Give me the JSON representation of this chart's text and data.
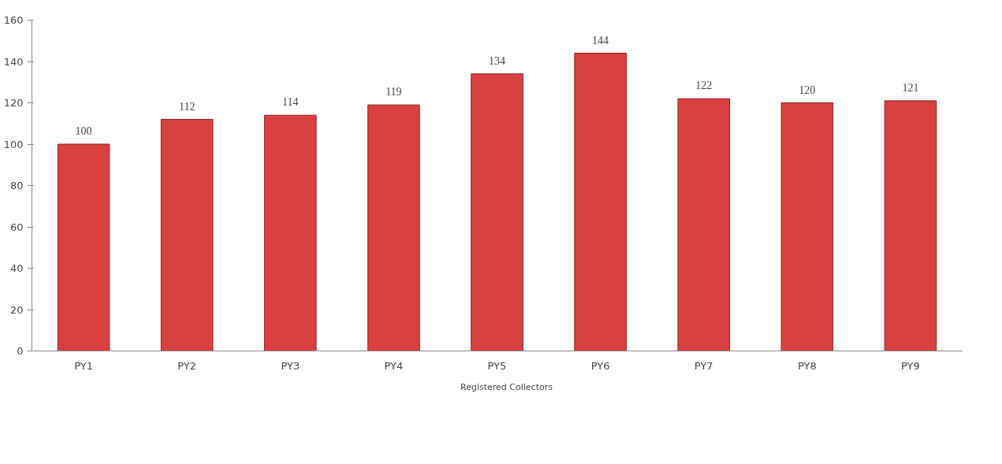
{
  "chart_data": {
    "type": "bar",
    "categories": [
      "PY1",
      "PY2",
      "PY3",
      "PY4",
      "PY5",
      "PY6",
      "PY7",
      "PY8",
      "PY9"
    ],
    "series": [
      {
        "name": "Registered Collectors",
        "color": "#d94040",
        "values": [
          100,
          112,
          114,
          119,
          134,
          144,
          122,
          120,
          121
        ]
      }
    ],
    "ylim": [
      0,
      160
    ],
    "yticks": [
      0,
      20,
      40,
      60,
      80,
      100,
      120,
      140,
      160
    ],
    "data_labels": true,
    "legend": "bottom",
    "grid": false
  }
}
